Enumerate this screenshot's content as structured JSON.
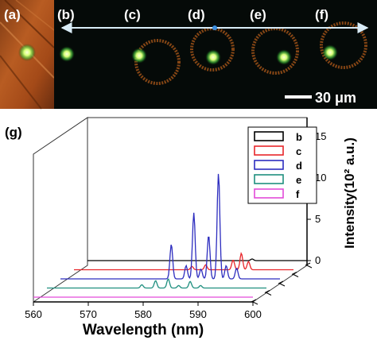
{
  "panels": {
    "a": "(a)",
    "b": "(b)",
    "c": "(c)",
    "d": "(d)",
    "e": "(e)",
    "f": "(f)",
    "g": "(g)"
  },
  "scale_bar": {
    "label": "30 μm"
  },
  "colors": {
    "micrograph_bg": "#050a08",
    "brown_panel": "#b0521c",
    "ring": "#b05a1a",
    "spot": "#d8ff78",
    "arrow": "#d9ecf7",
    "arrow_dot": "#3b8ee0"
  },
  "chart_data": {
    "type": "line",
    "subtype": "3d-waterfall",
    "xlabel": "Wavelength (nm)",
    "ylabel": "Intensity(10² a.u.)",
    "xlim": [
      560,
      600
    ],
    "ylim": [
      0,
      16
    ],
    "x_ticks": [
      560,
      570,
      580,
      590,
      600
    ],
    "y_ticks": [
      0,
      5,
      10,
      15
    ],
    "legend_position": "top-right",
    "series": [
      {
        "name": "b",
        "color": "#000000",
        "peaks": [
          [
            590,
            0.2
          ]
        ]
      },
      {
        "name": "c",
        "color": "#e8262a",
        "peaks": [
          [
            581.5,
            0.4
          ],
          [
            584,
            0.6
          ],
          [
            589,
            1.2
          ],
          [
            590.5,
            2.0
          ],
          [
            591.8,
            1.0
          ]
        ]
      },
      {
        "name": "d",
        "color": "#2d2dbf",
        "peaks": [
          [
            580.2,
            4.2
          ],
          [
            582.9,
            1.6
          ],
          [
            584.3,
            8.0
          ],
          [
            585.6,
            1.2
          ],
          [
            587.0,
            5.3
          ],
          [
            588.8,
            12.8
          ],
          [
            590.2,
            1.6
          ],
          [
            592.1,
            1.3
          ]
        ]
      },
      {
        "name": "e",
        "color": "#1f8f7f",
        "peaks": [
          [
            577.3,
            0.4
          ],
          [
            579.8,
            0.9
          ],
          [
            582.1,
            1.1
          ],
          [
            584.0,
            0.3
          ],
          [
            586.1,
            0.8
          ],
          [
            588.0,
            0.3
          ]
        ]
      },
      {
        "name": "f",
        "color": "#e34bd9",
        "peaks": []
      }
    ]
  }
}
